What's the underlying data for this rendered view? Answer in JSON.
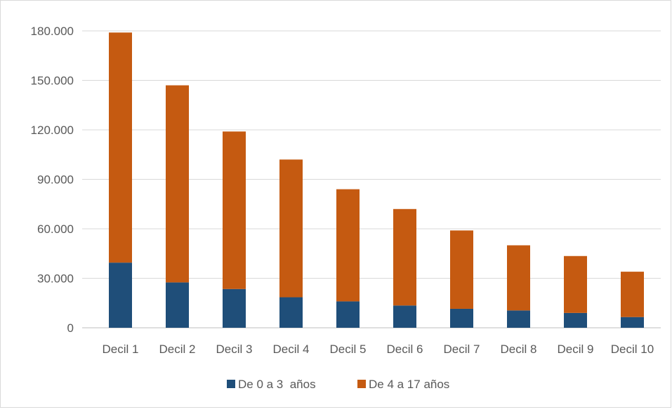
{
  "chart_data": {
    "type": "bar",
    "stacked": true,
    "categories": [
      "Decil 1",
      "Decil 2",
      "Decil 3",
      "Decil 4",
      "Decil 5",
      "Decil 6",
      "Decil 7",
      "Decil 8",
      "Decil 9",
      "Decil 10"
    ],
    "series": [
      {
        "name": "De 0 a 3  años",
        "color": "#1f4e79",
        "values": [
          39500,
          27500,
          23500,
          18500,
          16000,
          13500,
          11500,
          10500,
          9000,
          6500
        ]
      },
      {
        "name": "De 4 a 17 años",
        "color": "#c55a11",
        "values": [
          139500,
          119500,
          95500,
          83500,
          68000,
          58500,
          47500,
          39500,
          34500,
          27500
        ]
      }
    ],
    "y_ticks": [
      "0",
      "30.000",
      "60.000",
      "90.000",
      "120.000",
      "150.000",
      "180.000"
    ],
    "ylim": [
      0,
      180000
    ],
    "grid": true,
    "legend": "bottom",
    "title": "",
    "xlabel": "",
    "ylabel": ""
  }
}
